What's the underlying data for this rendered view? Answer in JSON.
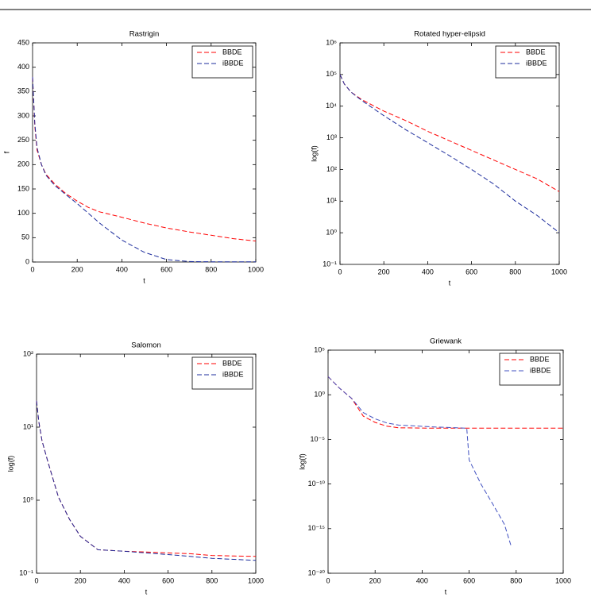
{
  "chart_data": [
    {
      "type": "line",
      "title": "Rastrigin",
      "xlabel": "t",
      "ylabel": "f",
      "x": [
        0,
        10,
        20,
        40,
        60,
        100,
        150,
        200,
        250,
        300,
        400,
        500,
        600,
        700,
        800,
        900,
        1000
      ],
      "series": [
        {
          "name": "BBDE",
          "color": "#ff0000",
          "values": [
            380,
            280,
            230,
            200,
            180,
            160,
            140,
            125,
            112,
            103,
            92,
            80,
            70,
            62,
            55,
            48,
            43
          ]
        },
        {
          "name": "iBBDE",
          "color": "#1c2c9c",
          "values": [
            380,
            285,
            235,
            200,
            178,
            157,
            138,
            120,
            100,
            80,
            45,
            20,
            5,
            1,
            0.5,
            0.3,
            0.3
          ]
        }
      ],
      "xlim": [
        0,
        1000
      ],
      "xticks": [
        0,
        200,
        400,
        600,
        800,
        1000
      ],
      "ylim": [
        0,
        450
      ],
      "yticks": [
        0,
        50,
        100,
        150,
        200,
        250,
        300,
        350,
        400,
        450
      ],
      "legend": "upper right"
    },
    {
      "type": "line",
      "title": "Rotated hyper-elipsid",
      "xlabel": "t",
      "ylabel": "log(f)",
      "x": [
        0,
        20,
        50,
        100,
        200,
        300,
        400,
        500,
        600,
        700,
        800,
        900,
        1000
      ],
      "series": [
        {
          "name": "BBDE",
          "color": "#ff0000",
          "values": [
            100000,
            50000,
            28000,
            16000,
            7000,
            3500,
            1600,
            800,
            400,
            200,
            100,
            50,
            20
          ]
        },
        {
          "name": "iBBDE",
          "color": "#1c2c9c",
          "values": [
            100000,
            50000,
            28000,
            15000,
            5000,
            1800,
            700,
            270,
            100,
            35,
            10,
            3.5,
            1
          ]
        }
      ],
      "xlim": [
        0,
        1000
      ],
      "xticks": [
        0,
        200,
        400,
        600,
        800,
        1000
      ],
      "ylim": [
        0.1,
        1000000
      ],
      "yscale": "log",
      "yticks": [
        {
          "value": 0.1,
          "label": "10⁻¹"
        },
        {
          "value": 1,
          "label": "10⁰"
        },
        {
          "value": 10,
          "label": "10¹"
        },
        {
          "value": 100,
          "label": "10²"
        },
        {
          "value": 1000,
          "label": "10³"
        },
        {
          "value": 10000,
          "label": "10⁴"
        },
        {
          "value": 100000,
          "label": "10⁵"
        },
        {
          "value": 1000000,
          "label": "10⁶"
        }
      ],
      "legend": "upper right"
    },
    {
      "type": "line",
      "title": "Salomon",
      "xlabel": "t",
      "ylabel": "log(f)",
      "x": [
        0,
        10,
        25,
        50,
        100,
        150,
        200,
        280,
        400,
        500,
        600,
        700,
        800,
        900,
        1000
      ],
      "series": [
        {
          "name": "BBDE",
          "color": "#ff0000",
          "values": [
            23,
            12,
            6.5,
            3.5,
            1.1,
            0.55,
            0.32,
            0.21,
            0.2,
            0.195,
            0.19,
            0.185,
            0.175,
            0.172,
            0.17
          ]
        },
        {
          "name": "iBBDE",
          "color": "#1c2c9c",
          "values": [
            23,
            12,
            6.5,
            3.5,
            1.1,
            0.55,
            0.32,
            0.21,
            0.2,
            0.19,
            0.18,
            0.17,
            0.16,
            0.155,
            0.15
          ]
        }
      ],
      "xlim": [
        0,
        1000
      ],
      "xticks": [
        0,
        200,
        400,
        600,
        800,
        1000
      ],
      "ylim": [
        0.1,
        100
      ],
      "yscale": "log",
      "yticks": [
        {
          "value": 0.1,
          "label": "10⁻¹"
        },
        {
          "value": 1,
          "label": "10⁰"
        },
        {
          "value": 10,
          "label": "10¹"
        },
        {
          "value": 100,
          "label": "10²"
        }
      ],
      "legend": "upper right"
    },
    {
      "type": "line",
      "title": "Griewank",
      "xlabel": "t",
      "ylabel": "log(f)",
      "x": [
        0,
        50,
        100,
        150,
        200,
        250,
        300,
        450,
        590,
        600,
        650,
        700,
        750,
        780,
        800,
        1000
      ],
      "series": [
        {
          "name": "BBDE",
          "color": "#ff0000",
          "values": [
            110,
            5,
            0.4,
            0.004,
            0.0008,
            0.0003,
            0.0002,
            0.00018,
            0.00018,
            0.00018,
            0.00018,
            0.00018,
            0.00018,
            0.00018,
            0.00018,
            0.00018
          ]
        },
        {
          "name": "iBBDE",
          "color": "#4050c0",
          "values": [
            110,
            5,
            0.4,
            0.01,
            0.002,
            0.0007,
            0.0004,
            0.00025,
            0.00018,
            5e-08,
            1e-10,
            6e-13,
            3e-15,
            8e-18,
            null,
            null
          ]
        }
      ],
      "xlim": [
        0,
        1000
      ],
      "xticks": [
        0,
        200,
        400,
        600,
        800,
        1000
      ],
      "ylim": [
        1e-20,
        100000
      ],
      "yscale": "log",
      "yticks": [
        {
          "value": 1e-20,
          "label": "10⁻²⁰"
        },
        {
          "value": 1e-15,
          "label": "10⁻¹⁵"
        },
        {
          "value": 1e-10,
          "label": "10⁻¹⁰"
        },
        {
          "value": 1e-05,
          "label": "10⁻⁵"
        },
        {
          "value": 1,
          "label": "10⁰"
        },
        {
          "value": 100000,
          "label": "10⁵"
        }
      ],
      "legend": "upper right"
    }
  ]
}
